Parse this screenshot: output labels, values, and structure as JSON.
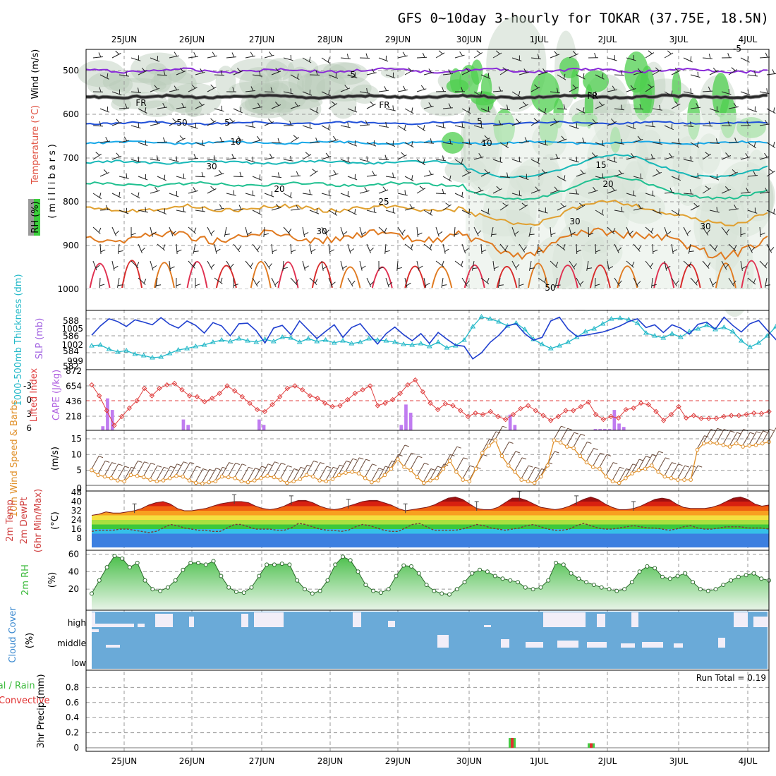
{
  "title": "GFS 0~10day 3-hourly for TOKAR (37.75E, 18.5N)",
  "dates": [
    "25JUN",
    "26JUN",
    "27JUN",
    "28JUN",
    "29JUN",
    "30JUN",
    "1JUL",
    "2JUL",
    "3JUL",
    "4JUL"
  ],
  "panels": {
    "upper": {
      "ylabel_rh": "RH (%)",
      "ylabel_temp": "Temperature (°C)",
      "ylabel_wind": "Wind (m/s)",
      "ylabel_mb": "(millibars)",
      "ticks": [
        "500",
        "600",
        "700",
        "800",
        "900",
        "1000"
      ],
      "contour_labels": [
        "-5",
        "FR",
        "FR",
        "FR",
        "-5",
        "5",
        "5",
        "10",
        "10",
        "15",
        "20",
        "20",
        "25",
        "30",
        "30",
        "30",
        "30",
        "50",
        "50"
      ]
    },
    "slp": {
      "ylabel_thick": "1000-500mb Thickness (dm)",
      "ylabel_slp": "SLP (mb)",
      "left_ticks": [
        "588",
        "586",
        "584",
        "582"
      ],
      "right_ticks": [
        "1005",
        "1002",
        "999"
      ]
    },
    "cape": {
      "ylabel_li": "Lifted Index",
      "ylabel_cape": "CAPE (J/kg)",
      "left_ticks": [
        "-3",
        "0",
        "3",
        "6"
      ],
      "right_ticks": [
        "872",
        "654",
        "436",
        "218"
      ]
    },
    "wind10": {
      "ylabel": "10m Wind Speed & Barbs",
      "unit": "(m/s)",
      "ticks": [
        "15",
        "10",
        "5",
        "0"
      ]
    },
    "temp2m": {
      "ylabel1": "2m Temp",
      "ylabel2": "2m DewPt",
      "ylabel3": "(6hr Min/Max)",
      "unit": "(°C)",
      "ticks": [
        "48",
        "40",
        "32",
        "24",
        "16",
        "8"
      ]
    },
    "rh2m": {
      "ylabel": "2m RH",
      "unit": "(%)",
      "ticks": [
        "60",
        "40",
        "20"
      ]
    },
    "cloud": {
      "ylabel": "Cloud Cover",
      "unit": "(%)",
      "levels": [
        "high",
        "middle",
        "low"
      ]
    },
    "precip": {
      "ylabel_a": "Total / Rain",
      "ylabel_b": "Convective",
      "ylabel_c": "3hr Precip (mm)",
      "run_total": "Run Total = 0.19",
      "ticks": [
        "0.8",
        "0.6",
        "0.4",
        "0.2",
        "0"
      ]
    }
  },
  "colors": {
    "slp": "#1f3fcf",
    "thickness": "#22b8c8",
    "li": "#e04040",
    "cape": "#c07cf0",
    "wind10": "#e0902a",
    "rh_fill": "#5cc85c",
    "cloud": "#6aaad8",
    "cloud_gap": "#f2eef8",
    "precip_total": "#44cc44",
    "precip_conv": "#e03030",
    "temp_line": "#7a1a1a"
  },
  "chart_data": [
    {
      "type": "line",
      "name": "slp_thickness",
      "x_unit": "3-hourly step from 24JUN 12Z",
      "series": [
        {
          "name": "SLP (mb)",
          "values": [
            1003.5,
            1005.2,
            1006.5,
            1006.0,
            1005.1,
            1006.3,
            1005.9,
            1005.4,
            1006.7,
            1005.5,
            1004.8,
            1006.1,
            1005.3,
            1003.9,
            1005.8,
            1005.2,
            1003.4,
            1005.6,
            1005.7,
            1004.3,
            1002.1,
            1004.8,
            1005.3,
            1003.6,
            1006.1,
            1004.5,
            1002.9,
            1004.2,
            1005.4,
            1003.1,
            1004.9,
            1005.6,
            1003.7,
            1001.9,
            1003.8,
            1005.0,
            1003.6,
            1002.5,
            1003.8,
            1002.0,
            1004.0,
            1002.8,
            1001.7,
            1001.5,
            999.2,
            1000.3,
            1002.2,
            1003.5,
            1005.2,
            1005.6,
            1003.8,
            1002.6,
            1003.1,
            1006.1,
            1006.8,
            1004.6,
            1003.3,
            1003.5,
            1003.8,
            1004.1,
            1004.6,
            1005.2,
            1006.0,
            1006.5,
            1004.9,
            1005.4,
            1004.0,
            1005.4,
            1004.8,
            1003.7,
            1005.5,
            1005.9,
            1004.6,
            1006.8,
            1005.3,
            1004.1,
            1005.6,
            1006.2,
            1004.4,
            1002.7,
            1005.4,
            1006.4,
            1005.2,
            1003.6,
            1002.8,
            1004.0,
            1005.1,
            1003.8,
            1004.8,
            1006.5
          ]
        },
        {
          "name": "Thickness (dm)",
          "values": [
            584.8,
            584.9,
            584.3,
            583.9,
            584.1,
            583.6,
            583.4,
            583.1,
            583.2,
            583.7,
            584.2,
            584.4,
            584.7,
            584.9,
            585.3,
            585.6,
            585.4,
            585.8,
            585.5,
            585.3,
            585.7,
            585.4,
            586.0,
            585.9,
            585.3,
            585.8,
            585.4,
            585.6,
            585.2,
            585.5,
            585.1,
            585.3,
            585.8,
            585.6,
            585.5,
            585.3,
            585.0,
            584.9,
            585.1,
            584.7,
            585.3,
            584.5,
            584.8,
            585.6,
            587.5,
            588.9,
            588.6,
            588.2,
            587.6,
            588.0,
            587.1,
            585.7,
            585.0,
            584.4,
            584.8,
            585.3,
            586.0,
            586.8,
            587.2,
            587.9,
            588.6,
            588.7,
            588.5,
            588.0,
            586.6,
            586.2,
            585.9,
            586.5,
            586.0,
            586.8,
            587.2,
            587.7,
            587.1,
            587.4,
            586.8,
            585.5,
            584.6,
            585.2,
            586.2,
            587.5,
            587.8,
            587.4,
            585.7,
            585.1,
            585.9,
            586.5,
            585.8,
            585.4,
            584.8,
            585.2
          ]
        }
      ],
      "ylim_left": [
        582,
        589
      ],
      "ylim_right": [
        998,
        1007
      ]
    },
    {
      "type": "bar",
      "name": "cape_li",
      "series": [
        {
          "name": "CAPE (J/kg)",
          "values": [
            0,
            0,
            60,
            470,
            300,
            0,
            0,
            0,
            0,
            0,
            0,
            0,
            0,
            0,
            0,
            0,
            0,
            0,
            0,
            160,
            80,
            0,
            0,
            0,
            0,
            0,
            0,
            0,
            0,
            0,
            0,
            0,
            0,
            0,
            0,
            160,
            80,
            0,
            0,
            0,
            0,
            0,
            0,
            0,
            0,
            0,
            0,
            0,
            0,
            0,
            0,
            0,
            0,
            0,
            0,
            0,
            0,
            0,
            0,
            0,
            0,
            0,
            0,
            0,
            0,
            80,
            380,
            260,
            0,
            0,
            0,
            0,
            0,
            0,
            0,
            0,
            0,
            0,
            0,
            0,
            0,
            0,
            0,
            0,
            0,
            0,
            0,
            0,
            230,
            80,
            0,
            0,
            0,
            0,
            0,
            0,
            0,
            0,
            0,
            0,
            0,
            0,
            0,
            0,
            0,
            0,
            20,
            20,
            20,
            20,
            300,
            100,
            50,
            0,
            0,
            0,
            0,
            0,
            0,
            0,
            0,
            0,
            0,
            0,
            0,
            0,
            0,
            0,
            0,
            0,
            0,
            0,
            0,
            0,
            0,
            0,
            0,
            0,
            0,
            0,
            0,
            0,
            0
          ]
        },
        {
          "name": "Lifted Index",
          "values": [
            3.2,
            1.0,
            -2.0,
            -5.0,
            -3.2,
            -1.5,
            0.0,
            2.5,
            1.0,
            2.5,
            3.2,
            3.5,
            2.2,
            1.0,
            0.8,
            -0.2,
            0.5,
            1.5,
            3.0,
            2.0,
            0.8,
            -0.5,
            -1.8,
            -2.2,
            -0.8,
            0.8,
            2.5,
            3.0,
            2.2,
            1.0,
            0.5,
            -0.5,
            -1.2,
            -1.0,
            0.2,
            1.5,
            2.2,
            3.0,
            -1.0,
            -0.5,
            0.2,
            1.5,
            3.2,
            4.2,
            1.8,
            -0.5,
            -1.8,
            -0.6,
            -1.0,
            -2.0,
            -3.2,
            -2.5,
            -2.8,
            -2.2,
            -3.2,
            -3.8,
            -2.8,
            -1.6,
            -1.0,
            -2.0,
            -3.0,
            -4.0,
            -3.2,
            -2.0,
            -2.0,
            -1.2,
            -0.3,
            -2.8,
            -3.8,
            -3.2,
            -3.5,
            -1.8,
            -1.5,
            -0.5,
            -0.8,
            -2.2,
            -4.0,
            -2.8,
            -1.2,
            -3.5,
            -3.0,
            -3.6,
            -3.6,
            -3.6,
            -3.2,
            -3.0,
            -3.0,
            -2.8,
            -2.5,
            -2.6,
            -2.2
          ]
        }
      ],
      "ylim_left": [
        6,
        -5
      ],
      "ylim_right": [
        0,
        872
      ]
    },
    {
      "type": "line",
      "name": "wind10",
      "series": [
        {
          "name": "10m Wind Speed (m/s)",
          "values": [
            5.0,
            3.5,
            3.0,
            2.5,
            1.8,
            1.5,
            3.5,
            3.2,
            2.8,
            2.0,
            1.5,
            1.8,
            2.5,
            3.2,
            3.0,
            1.8,
            1.0,
            0.8,
            1.2,
            1.5,
            3.0,
            2.8,
            2.5,
            1.5,
            1.2,
            1.8,
            2.5,
            3.2,
            2.8,
            2.0,
            1.0,
            1.5,
            2.2,
            3.5,
            3.0,
            1.8,
            1.5,
            2.2,
            3.5,
            4.2,
            4.5,
            4.0,
            2.5,
            1.2,
            1.8,
            3.5,
            5.5,
            8.5,
            6.0,
            5.0,
            2.8,
            1.0,
            1.8,
            2.5,
            5.5,
            8.0,
            4.5,
            2.0,
            1.5,
            5.5,
            10.5,
            12.8,
            14.5,
            9.5,
            6.5,
            4.5,
            2.0,
            1.5,
            1.0,
            3.0,
            6.5,
            14.5,
            13.8,
            12.5,
            12.0,
            9.5,
            7.5,
            6.0,
            5.5,
            3.0,
            1.5,
            1.0,
            2.5,
            4.0,
            5.0,
            5.5,
            6.5,
            4.5,
            3.0,
            2.5,
            2.0,
            2.0,
            2.0,
            11.5,
            13.5,
            13.8,
            13.5,
            13.0,
            12.5,
            13.5,
            12.5,
            12.8,
            13.0,
            13.5,
            14.0
          ]
        }
      ],
      "ylim": [
        0,
        17
      ]
    },
    {
      "type": "area",
      "name": "temp2m",
      "series": [
        {
          "name": "2m Temp (°C)",
          "values": [
            28,
            29,
            31,
            30,
            30,
            31,
            32,
            34,
            37,
            39,
            40,
            38,
            34,
            32,
            32,
            33,
            34,
            36,
            38,
            39,
            40,
            40,
            39,
            36,
            34,
            33,
            34,
            36,
            39,
            41,
            41,
            39,
            36,
            34,
            33,
            34,
            36,
            38,
            40,
            41,
            41,
            39,
            37,
            34,
            32,
            33,
            34,
            35,
            37,
            40,
            43,
            44,
            42,
            38,
            34,
            33,
            33,
            35,
            39,
            43,
            43,
            41,
            38,
            35,
            34,
            33,
            34,
            36,
            39,
            42,
            44,
            42,
            38,
            35,
            33,
            33,
            34,
            36,
            39,
            42,
            43,
            42,
            38,
            35,
            34,
            34,
            34,
            35,
            37,
            40,
            43,
            44,
            42,
            38,
            36,
            37
          ]
        },
        {
          "name": "2m DewPt (°C)",
          "values": [
            14,
            15,
            15,
            15,
            16,
            16,
            15,
            14,
            13,
            14,
            17,
            20,
            19,
            17,
            16,
            15,
            15,
            14,
            14,
            17,
            20,
            20,
            18,
            16,
            16,
            16,
            15,
            15,
            17,
            21,
            20,
            18,
            16,
            15,
            15,
            14,
            15,
            18,
            20,
            19,
            17,
            15,
            14,
            14,
            17,
            20,
            21,
            18,
            15,
            15,
            15,
            15,
            16,
            18,
            20,
            19,
            17,
            16,
            15,
            16,
            17,
            19,
            20,
            18,
            16,
            15,
            15,
            16,
            19,
            21,
            19,
            17,
            16,
            16,
            17,
            18,
            19,
            18,
            17,
            17,
            16,
            15,
            16,
            18,
            19,
            17,
            16,
            16,
            17,
            18,
            18,
            18,
            17,
            17,
            17,
            16
          ]
        }
      ],
      "ylim": [
        0,
        48
      ]
    },
    {
      "type": "area",
      "name": "rh2m",
      "series": [
        {
          "name": "2m RH (%)",
          "values": [
            15,
            30,
            45,
            58,
            55,
            45,
            50,
            30,
            20,
            18,
            22,
            30,
            42,
            50,
            50,
            48,
            52,
            35,
            22,
            17,
            16,
            22,
            35,
            48,
            48,
            49,
            48,
            30,
            20,
            15,
            18,
            30,
            48,
            57,
            53,
            40,
            25,
            18,
            16,
            20,
            35,
            47,
            46,
            38,
            25,
            18,
            15,
            14,
            20,
            28,
            38,
            42,
            40,
            35,
            32,
            30,
            28,
            22,
            20,
            22,
            30,
            50,
            48,
            38,
            32,
            28,
            25,
            22,
            20,
            18,
            20,
            28,
            40,
            46,
            44,
            34,
            32,
            35,
            38,
            28,
            20,
            18,
            20,
            25,
            30,
            34,
            36,
            38,
            32,
            30
          ]
        }
      ],
      "ylim": [
        0,
        62
      ]
    },
    {
      "type": "bar",
      "name": "precip",
      "categories": [
        "30JUN 15Z",
        "1JUL 18Z"
      ],
      "series": [
        {
          "name": "Total / Rain (mm)",
          "values": [
            0.13,
            0.06
          ]
        },
        {
          "name": "Convective (mm)",
          "values": [
            0.13,
            0.06
          ]
        }
      ],
      "ylim": [
        0,
        1.0
      ]
    }
  ]
}
